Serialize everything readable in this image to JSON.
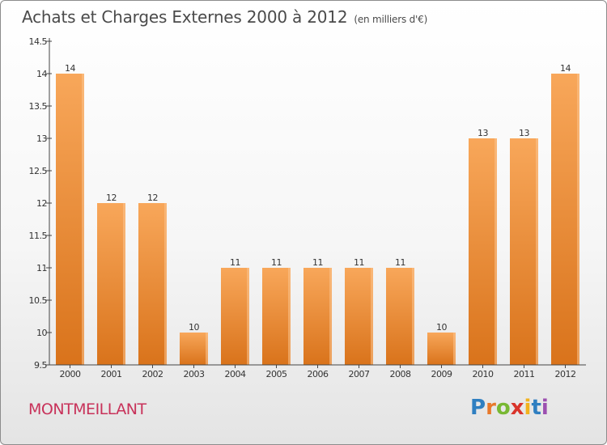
{
  "header": {
    "title": "Achats et Charges Externes 2000 à 2012",
    "subtitle": "(en milliers d'€)"
  },
  "footer": {
    "commune": "MONTMEILLANT",
    "logo_letters": [
      "P",
      "r",
      "o",
      "x",
      "i",
      "t",
      "i"
    ]
  },
  "colors": {
    "bar_top": "#f8a75a",
    "bar_bottom": "#d9731b",
    "commune_text": "#c8325a"
  },
  "chart_data": {
    "type": "bar",
    "title": "Achats et Charges Externes 2000 à 2012",
    "subtitle": "(en milliers d'€)",
    "categories": [
      "2000",
      "2001",
      "2002",
      "2003",
      "2004",
      "2005",
      "2006",
      "2007",
      "2008",
      "2009",
      "2010",
      "2011",
      "2012"
    ],
    "values": [
      14,
      12,
      12,
      10,
      11,
      11,
      11,
      11,
      11,
      10,
      13,
      13,
      14
    ],
    "value_labels": [
      "14",
      "12",
      "12",
      "10",
      "11",
      "11",
      "11",
      "11",
      "11",
      "10",
      "13",
      "13",
      "14"
    ],
    "ylim": [
      9.5,
      14.5
    ],
    "yticks": [
      9.5,
      10,
      10.5,
      11,
      11.5,
      12,
      12.5,
      13,
      13.5,
      14,
      14.5
    ],
    "ytick_labels": [
      "9.5",
      "10",
      "10.5",
      "11",
      "11.5",
      "12",
      "12.5",
      "13",
      "13.5",
      "14",
      "14.5"
    ],
    "xlabel": "",
    "ylabel": "",
    "grid": false,
    "legend": "none"
  }
}
